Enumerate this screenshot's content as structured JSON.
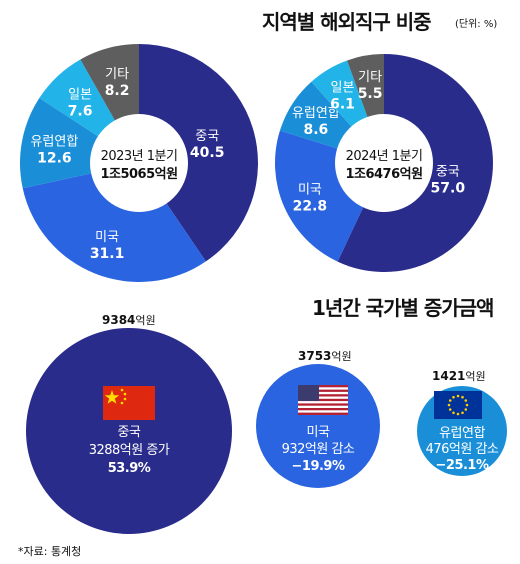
{
  "header": {
    "title": "지역별 해외직구 비중",
    "unit": "(단위: %)"
  },
  "chart_data": [
    {
      "type": "pie",
      "center_label": "2023년 1분기",
      "center_value": "1조5065억원",
      "categories": [
        "중국",
        "미국",
        "유럽연합",
        "일본",
        "기타"
      ],
      "values": [
        40.5,
        31.1,
        12.6,
        7.6,
        8.2
      ],
      "colors": [
        "#2a2c8c",
        "#2a64e0",
        "#1a8fd8",
        "#22b4e8",
        "#5e5e5e"
      ]
    },
    {
      "type": "pie",
      "center_label": "2024년 1분기",
      "center_value": "1조6476억원",
      "categories": [
        "중국",
        "미국",
        "유럽연합",
        "일본",
        "기타"
      ],
      "values": [
        57.0,
        22.8,
        8.6,
        6.1,
        5.5
      ],
      "colors": [
        "#2a2c8c",
        "#2a64e0",
        "#1a8fd8",
        "#22b4e8",
        "#5e5e5e"
      ]
    }
  ],
  "section2": {
    "title": "1년간 국가별 증가금액",
    "bubbles": [
      {
        "country": "중국",
        "total": "9384",
        "total_unit": "억원",
        "change": "3288억원 증가",
        "pct": "53.9%",
        "color": "#2a2c8c"
      },
      {
        "country": "미국",
        "total": "3753",
        "total_unit": "억원",
        "change": "932억원 감소",
        "pct": "−19.9%",
        "color": "#2a64e0"
      },
      {
        "country": "유럽연합",
        "total": "1421",
        "total_unit": "억원",
        "change": "476억원 감소",
        "pct": "−25.1%",
        "color": "#1a8fd8"
      }
    ]
  },
  "footer": {
    "source": "*자료: 통계청"
  }
}
